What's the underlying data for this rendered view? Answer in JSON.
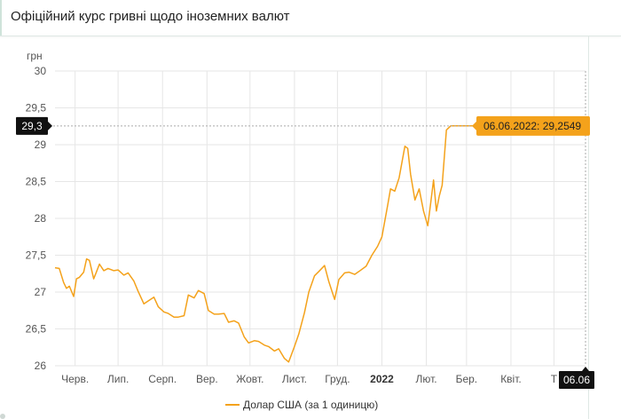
{
  "header": {
    "title": "Офіційний курс гривні щодо іноземних валют"
  },
  "chart_data": {
    "type": "line",
    "title": "Офіційний курс гривні щодо іноземних валют",
    "ylabel": "грн",
    "xlabel": "",
    "ylim": [
      26,
      30
    ],
    "yticks": [
      {
        "value": 30,
        "label": "30"
      },
      {
        "value": 29.5,
        "label": "29,5"
      },
      {
        "value": 29,
        "label": "29"
      },
      {
        "value": 28.5,
        "label": "28,5"
      },
      {
        "value": 28,
        "label": "28"
      },
      {
        "value": 27.5,
        "label": "27,5"
      },
      {
        "value": 27,
        "label": "27"
      },
      {
        "value": 26.5,
        "label": "26,5"
      },
      {
        "value": 26,
        "label": "26"
      }
    ],
    "xticks": [
      {
        "date": "2021-06-15",
        "label": "Черв.",
        "bold": false
      },
      {
        "date": "2021-07-15",
        "label": "Лип.",
        "bold": false
      },
      {
        "date": "2021-08-15",
        "label": "Серп.",
        "bold": false
      },
      {
        "date": "2021-09-15",
        "label": "Вер.",
        "bold": false
      },
      {
        "date": "2021-10-15",
        "label": "Жовт.",
        "bold": false
      },
      {
        "date": "2021-11-15",
        "label": "Лист.",
        "bold": false
      },
      {
        "date": "2021-12-15",
        "label": "Груд.",
        "bold": false
      },
      {
        "date": "2022-01-15",
        "label": "2022",
        "bold": true
      },
      {
        "date": "2022-02-15",
        "label": "Лют.",
        "bold": false
      },
      {
        "date": "2022-03-15",
        "label": "Бер.",
        "bold": false
      },
      {
        "date": "2022-04-15",
        "label": "Квіт.",
        "bold": false
      },
      {
        "date": "2022-05-15",
        "label": "Т",
        "bold": false
      }
    ],
    "grid": true,
    "legend_position": "bottom-center",
    "series": [
      {
        "name": "Долар США (за 1 одиницю)",
        "color": "#f4a21b",
        "points": [
          [
            "2021-06-01",
            27.33
          ],
          [
            "2021-06-04",
            27.32
          ],
          [
            "2021-06-07",
            27.13
          ],
          [
            "2021-06-09",
            27.05
          ],
          [
            "2021-06-11",
            27.08
          ],
          [
            "2021-06-14",
            26.94
          ],
          [
            "2021-06-16",
            27.18
          ],
          [
            "2021-06-18",
            27.2
          ],
          [
            "2021-06-21",
            27.27
          ],
          [
            "2021-06-23",
            27.45
          ],
          [
            "2021-06-25",
            27.43
          ],
          [
            "2021-06-28",
            27.18
          ],
          [
            "2021-06-30",
            27.28
          ],
          [
            "2021-07-02",
            27.38
          ],
          [
            "2021-07-05",
            27.29
          ],
          [
            "2021-07-08",
            27.32
          ],
          [
            "2021-07-12",
            27.29
          ],
          [
            "2021-07-15",
            27.3
          ],
          [
            "2021-07-19",
            27.23
          ],
          [
            "2021-07-22",
            27.26
          ],
          [
            "2021-07-26",
            27.15
          ],
          [
            "2021-07-29",
            27.01
          ],
          [
            "2021-08-02",
            26.84
          ],
          [
            "2021-08-05",
            26.88
          ],
          [
            "2021-08-09",
            26.93
          ],
          [
            "2021-08-12",
            26.8
          ],
          [
            "2021-08-16",
            26.73
          ],
          [
            "2021-08-19",
            26.71
          ],
          [
            "2021-08-23",
            26.66
          ],
          [
            "2021-08-26",
            26.66
          ],
          [
            "2021-08-30",
            26.68
          ],
          [
            "2021-09-02",
            26.96
          ],
          [
            "2021-09-06",
            26.92
          ],
          [
            "2021-09-09",
            27.02
          ],
          [
            "2021-09-13",
            26.98
          ],
          [
            "2021-09-16",
            26.75
          ],
          [
            "2021-09-20",
            26.7
          ],
          [
            "2021-09-23",
            26.7
          ],
          [
            "2021-09-27",
            26.71
          ],
          [
            "2021-09-30",
            26.59
          ],
          [
            "2021-10-04",
            26.61
          ],
          [
            "2021-10-07",
            26.58
          ],
          [
            "2021-10-11",
            26.39
          ],
          [
            "2021-10-14",
            26.31
          ],
          [
            "2021-10-18",
            26.34
          ],
          [
            "2021-10-21",
            26.33
          ],
          [
            "2021-10-25",
            26.28
          ],
          [
            "2021-10-28",
            26.26
          ],
          [
            "2021-11-01",
            26.2
          ],
          [
            "2021-11-04",
            26.23
          ],
          [
            "2021-11-08",
            26.1
          ],
          [
            "2021-11-11",
            26.05
          ],
          [
            "2021-11-15",
            26.26
          ],
          [
            "2021-11-18",
            26.43
          ],
          [
            "2021-11-22",
            26.72
          ],
          [
            "2021-11-25",
            27.0
          ],
          [
            "2021-11-29",
            27.22
          ],
          [
            "2021-12-02",
            27.28
          ],
          [
            "2021-12-06",
            27.36
          ],
          [
            "2021-12-09",
            27.14
          ],
          [
            "2021-12-13",
            26.9
          ],
          [
            "2021-12-16",
            27.17
          ],
          [
            "2021-12-20",
            27.26
          ],
          [
            "2021-12-23",
            27.27
          ],
          [
            "2021-12-27",
            27.24
          ],
          [
            "2021-12-30",
            27.28
          ],
          [
            "2022-01-04",
            27.35
          ],
          [
            "2022-01-08",
            27.5
          ],
          [
            "2022-01-12",
            27.62
          ],
          [
            "2022-01-15",
            27.75
          ],
          [
            "2022-01-19",
            28.18
          ],
          [
            "2022-01-21",
            28.4
          ],
          [
            "2022-01-24",
            28.37
          ],
          [
            "2022-01-27",
            28.55
          ],
          [
            "2022-01-31",
            28.98
          ],
          [
            "2022-02-02",
            28.95
          ],
          [
            "2022-02-04",
            28.6
          ],
          [
            "2022-02-07",
            28.25
          ],
          [
            "2022-02-10",
            28.4
          ],
          [
            "2022-02-13",
            28.1
          ],
          [
            "2022-02-16",
            27.9
          ],
          [
            "2022-02-18",
            28.2
          ],
          [
            "2022-02-20",
            28.52
          ],
          [
            "2022-02-22",
            28.1
          ],
          [
            "2022-02-24",
            28.3
          ],
          [
            "2022-02-26",
            28.45
          ],
          [
            "2022-03-01",
            29.2
          ],
          [
            "2022-03-04",
            29.2549
          ],
          [
            "2022-04-15",
            29.2549
          ],
          [
            "2022-06-06",
            29.2549
          ]
        ]
      }
    ],
    "crosshair": {
      "date": "2022-06-06",
      "value": 29.2549
    },
    "tooltip": "06.06.2022: 29,2549",
    "y_marker_label": "29,3",
    "x_marker_label": "06.06"
  },
  "colors": {
    "series": "#f4a21b",
    "grid": "#e6e6e6",
    "badge": "#111111"
  }
}
